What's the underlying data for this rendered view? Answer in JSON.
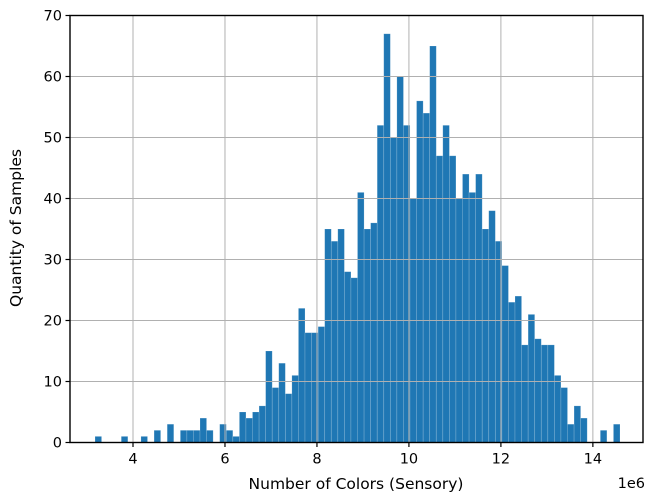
{
  "figure": {
    "background": "#ffffff"
  },
  "chart_data": {
    "type": "bar",
    "subtype": "histogram",
    "xlabel": "Number of Colors (Sensory)",
    "ylabel": "Quantity of Samples",
    "x_offset_label": "1e6",
    "x_unit_multiplier": 1000000,
    "x_ticks": [
      4,
      6,
      8,
      10,
      12,
      14
    ],
    "y_ticks": [
      0,
      10,
      20,
      30,
      40,
      50,
      60,
      70
    ],
    "xlim": [
      2.63,
      15.09
    ],
    "ylim": [
      0,
      70
    ],
    "grid": true,
    "legend": false,
    "bin_start": 3.174,
    "bin_width": 0.1427,
    "values": [
      1,
      0,
      0,
      0,
      1,
      0,
      0,
      1,
      0,
      2,
      0,
      3,
      0,
      2,
      2,
      2,
      4,
      2,
      0,
      3,
      2,
      1,
      5,
      4,
      5,
      6,
      15,
      9,
      13,
      8,
      11,
      22,
      18,
      18,
      19,
      35,
      33,
      35,
      28,
      27,
      41,
      35,
      36,
      52,
      67,
      50,
      60,
      52,
      40,
      56,
      54,
      65,
      47,
      52,
      47,
      40,
      44,
      41,
      44,
      35,
      38,
      33,
      29,
      23,
      24,
      16,
      21,
      17,
      16,
      16,
      11,
      9,
      3,
      6,
      4,
      0,
      0,
      2,
      0,
      3
    ],
    "bar_color": "#1f77b4",
    "bar_edge_color": "rgba(255,255,255,0.22)",
    "grid_color": "#b0b0b0",
    "axis_color": "#000000",
    "tick_font_size": 14.5,
    "label_font_size": 15.5
  }
}
